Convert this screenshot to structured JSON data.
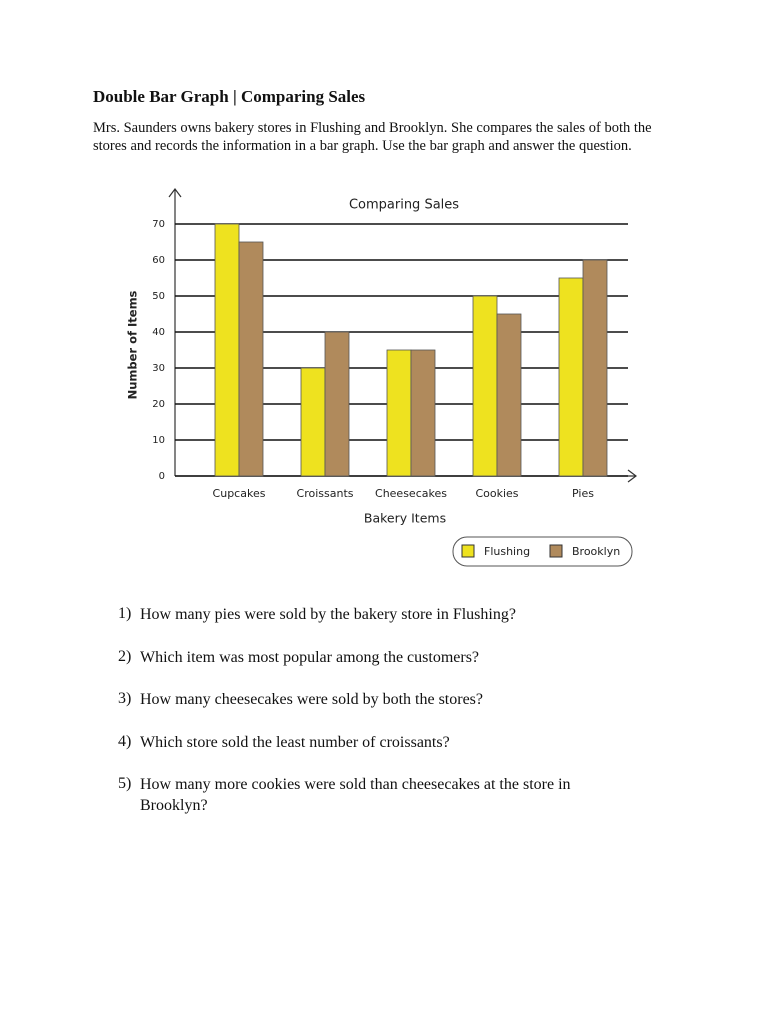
{
  "title": "Double Bar Graph | Comparing Sales",
  "intro": "Mrs. Saunders owns bakery stores in Flushing and Brooklyn. She compares the sales of both the stores and records the information in a bar graph. Use the bar graph and answer the question.",
  "chart_data": {
    "type": "bar",
    "title": "Comparing Sales",
    "x_label": "Bakery Items",
    "y_label": "Number of Items",
    "categories": [
      "Cupcakes",
      "Croissants",
      "Cheesecakes",
      "Cookies",
      "Pies"
    ],
    "series": [
      {
        "name": "Flushing",
        "color": "#eee21f",
        "values": [
          70,
          30,
          35,
          50,
          55
        ]
      },
      {
        "name": "Brooklyn",
        "color": "#b08a5c",
        "values": [
          65,
          40,
          35,
          45,
          60
        ]
      }
    ],
    "ylim": [
      0,
      70
    ],
    "yticks": [
      0,
      10,
      20,
      30,
      40,
      50,
      60,
      70
    ],
    "grid": true,
    "legend": "bottom-right"
  },
  "questions": [
    {
      "number": "1)",
      "text": "How many pies were sold by the bakery store in Flushing?"
    },
    {
      "number": "2)",
      "text": "Which item was most popular among the customers?"
    },
    {
      "number": "3)",
      "text": "How many cheesecakes were sold by both the stores?"
    },
    {
      "number": "4)",
      "text": "Which store sold the least number of croissants?"
    },
    {
      "number": "5)",
      "text": "How many more cookies were sold than cheesecakes at the store in Brooklyn?"
    }
  ]
}
